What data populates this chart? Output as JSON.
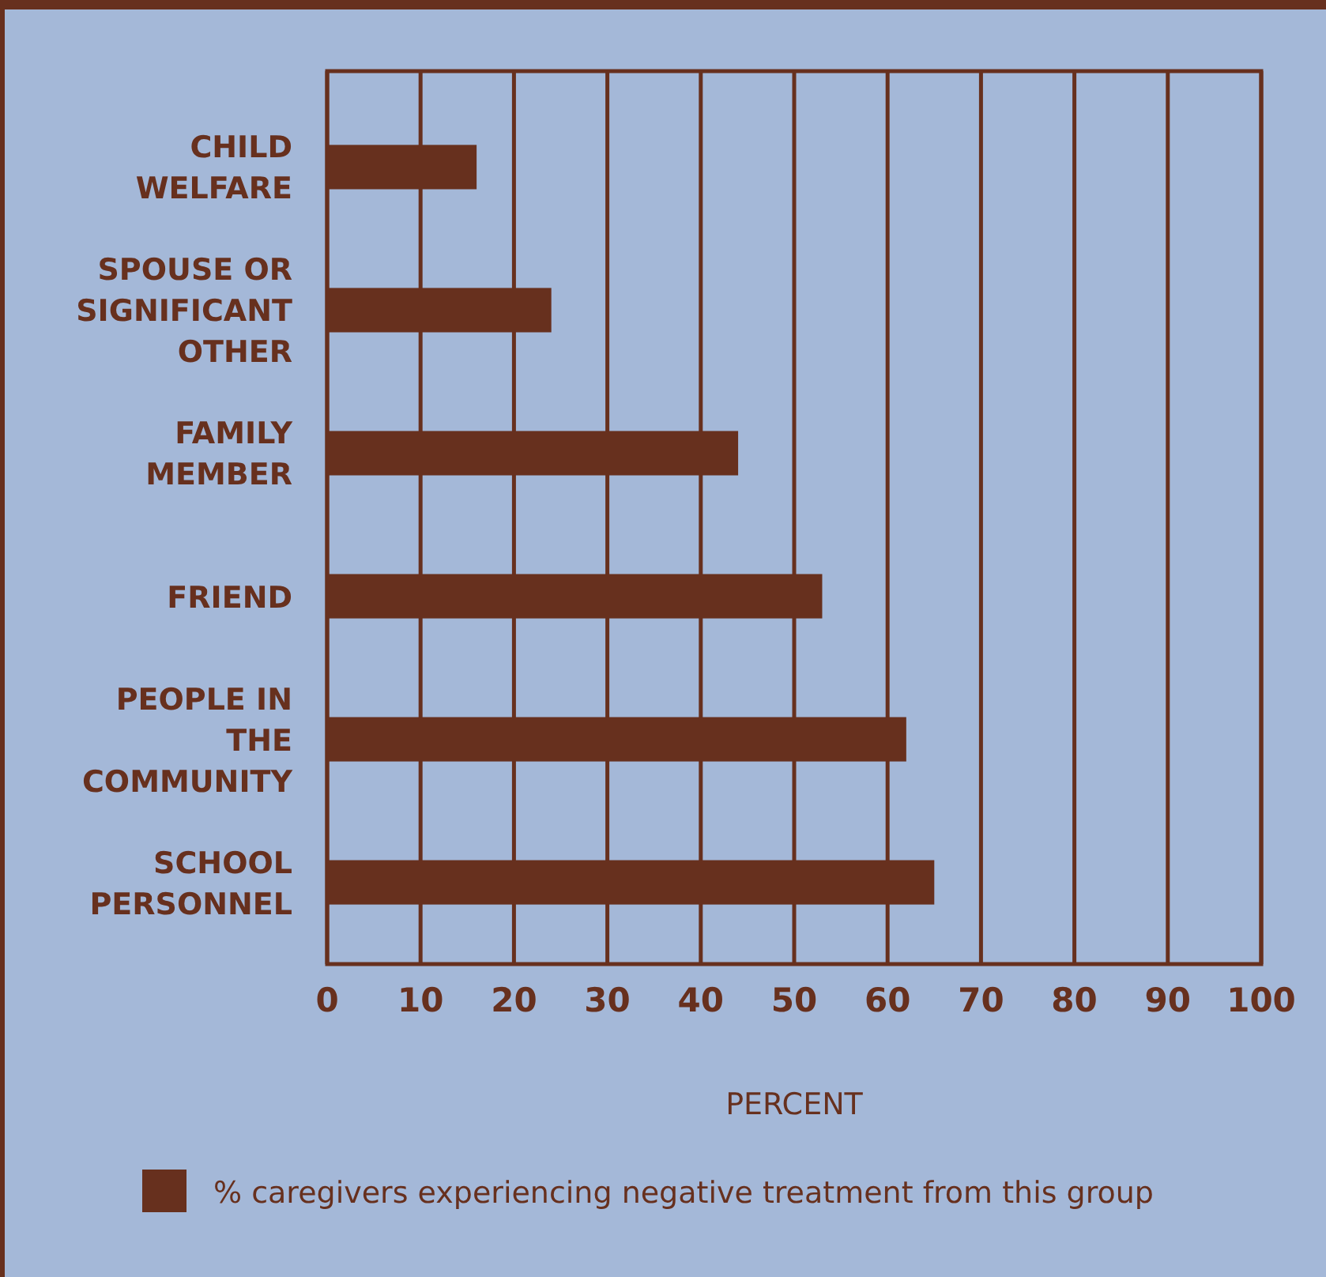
{
  "chart_data": {
    "type": "bar",
    "orientation": "horizontal",
    "xlabel": "PERCENT",
    "categories": [
      "CHILD WELFARE",
      "SPOUSE OR SIGNIFICANT OTHER",
      "FAMILY MEMBER",
      "FRIEND",
      "PEOPLE IN THE COMMUNITY",
      "SCHOOL PERSONNEL"
    ],
    "series": [
      {
        "name": "% caregivers experiencing negative treatment from this group",
        "color": "#67301e",
        "values": [
          16,
          24,
          44,
          53,
          62,
          65
        ]
      }
    ],
    "xlim": [
      0,
      100
    ],
    "xticks": [
      0,
      10,
      20,
      30,
      40,
      50,
      60,
      70,
      80,
      90,
      100
    ],
    "grid": "x",
    "legend": "bottom"
  }
}
